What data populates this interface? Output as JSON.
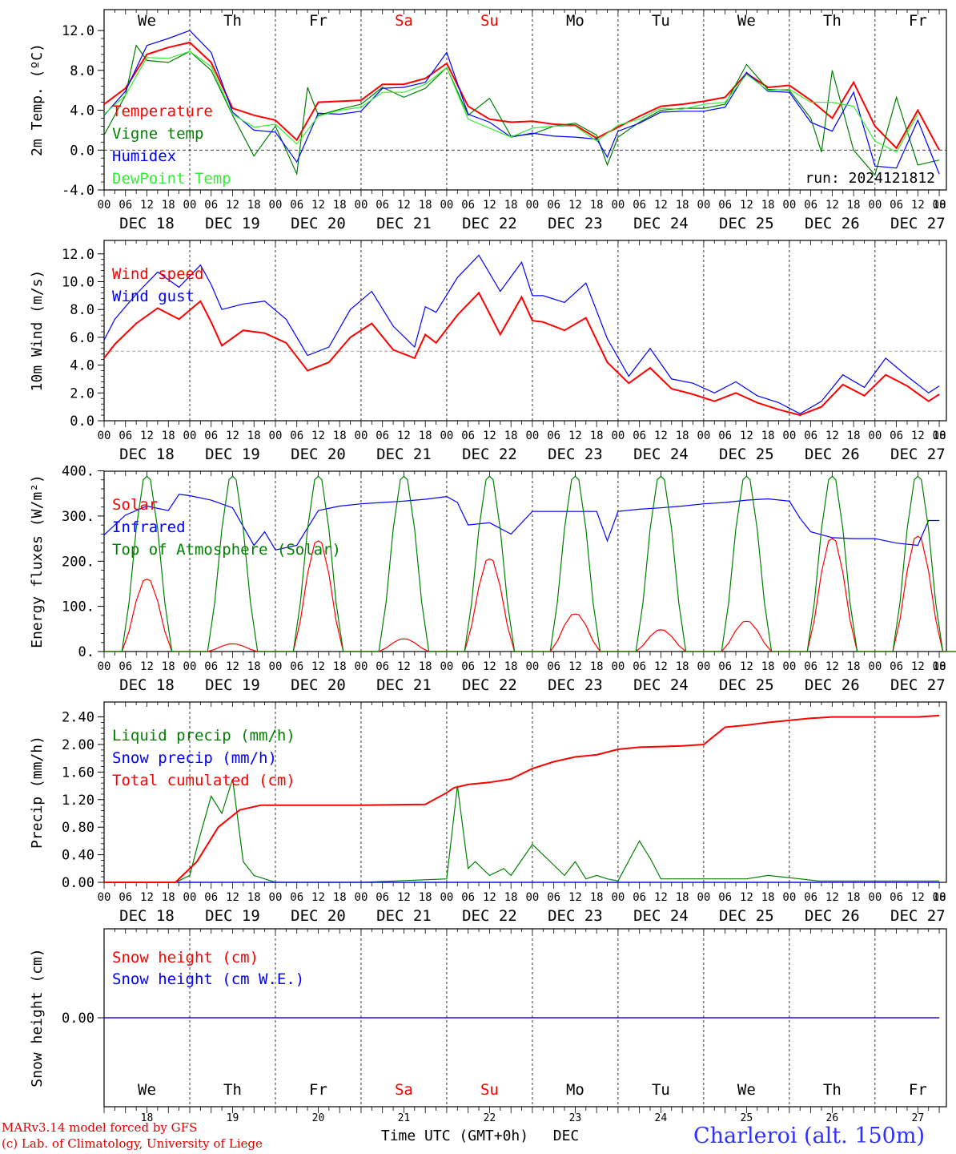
{
  "chart_data": {
    "type": "line",
    "run_label": "run: 2024121812",
    "days": [
      "DEC 18",
      "DEC 19",
      "DEC 20",
      "DEC 21",
      "DEC 22",
      "DEC 23",
      "DEC 24",
      "DEC 25",
      "DEC 26",
      "DEC 27"
    ],
    "weekdays": [
      "We",
      "Th",
      "Fr",
      "Sa",
      "Su",
      "Mo",
      "Tu",
      "We",
      "Th",
      "Fr"
    ],
    "weekend_color": "#ff0000",
    "hour_ticks": [
      "00",
      "06",
      "12",
      "18"
    ],
    "panels": [
      {
        "id": "temp",
        "ylabel": "2m Temp. (ºC)",
        "ylim": [
          -4,
          14
        ],
        "yticks": [
          "-4.0",
          "0.0",
          "4.0",
          "8.0",
          "12.0"
        ],
        "ytick_values": [
          -4,
          0,
          4,
          8,
          12
        ],
        "ref_line": 0,
        "series": [
          {
            "name": "Temperature",
            "color": "#ff0000",
            "x": [
              0,
              6,
              12,
              18,
              24,
              30,
              36,
              42,
              48,
              54,
              60,
              66,
              72,
              78,
              84,
              90,
              96,
              102,
              108,
              114,
              120,
              126,
              132,
              138,
              144,
              150,
              156,
              162,
              168,
              174,
              180,
              186,
              192,
              198,
              204,
              210,
              216,
              222,
              228,
              234
            ],
            "y": [
              4.6,
              6.2,
              9.6,
              10.3,
              10.8,
              8.8,
              4.2,
              3.5,
              3.0,
              1.0,
              4.8,
              4.9,
              5.0,
              6.6,
              6.6,
              7.2,
              8.7,
              4.4,
              3.1,
              2.8,
              2.9,
              2.6,
              2.5,
              1.2,
              2.3,
              3.4,
              4.4,
              4.6,
              4.9,
              5.3,
              7.7,
              6.3,
              6.5,
              5.0,
              3.2,
              6.8,
              2.4,
              0.2,
              4.0,
              0.0
            ]
          },
          {
            "name": "Vigne temp",
            "color": "#008000",
            "x": [
              0,
              6,
              9,
              12,
              18,
              24,
              30,
              36,
              42,
              48,
              54,
              57,
              60,
              66,
              72,
              78,
              84,
              90,
              96,
              102,
              108,
              114,
              120,
              126,
              132,
              138,
              141,
              144,
              150,
              156,
              162,
              168,
              174,
              180,
              186,
              192,
              198,
              201,
              204,
              210,
              216,
              222,
              228,
              234
            ],
            "y": [
              1.5,
              5.5,
              10.5,
              9.0,
              8.8,
              9.9,
              8.0,
              3.5,
              -0.6,
              2.4,
              -2.4,
              6.3,
              3.5,
              4.1,
              4.6,
              6.3,
              5.3,
              6.2,
              8.3,
              3.5,
              5.2,
              1.4,
              1.6,
              2.4,
              2.7,
              1.5,
              -1.5,
              1.3,
              2.8,
              4.0,
              4.2,
              4.2,
              4.6,
              8.6,
              6.1,
              6.0,
              3.2,
              -0.2,
              8.0,
              0.0,
              -2.5,
              5.3,
              -1.5,
              -1.0
            ]
          },
          {
            "name": "Humidex",
            "color": "#0000ff",
            "x": [
              0,
              6,
              12,
              18,
              24,
              30,
              36,
              42,
              48,
              54,
              60,
              66,
              72,
              78,
              84,
              90,
              96,
              102,
              108,
              114,
              120,
              126,
              132,
              138,
              141,
              144,
              150,
              156,
              162,
              168,
              174,
              180,
              186,
              192,
              198,
              204,
              210,
              216,
              222,
              228,
              234
            ],
            "y": [
              3.5,
              5.9,
              10.5,
              11.2,
              12.0,
              9.8,
              3.8,
              2.0,
              1.8,
              -1.2,
              3.7,
              3.6,
              3.9,
              6.2,
              6.3,
              6.8,
              9.8,
              3.6,
              2.8,
              1.3,
              1.7,
              1.4,
              1.3,
              1.1,
              -0.7,
              1.9,
              2.7,
              3.8,
              3.9,
              3.9,
              4.3,
              7.8,
              5.9,
              5.8,
              2.8,
              1.9,
              5.8,
              -1.6,
              -1.8,
              3.0,
              -2.4
            ]
          },
          {
            "name": "DewPoint Temp",
            "color": "#33ee33",
            "x": [
              0,
              6,
              12,
              18,
              24,
              30,
              36,
              42,
              48,
              54,
              60,
              66,
              72,
              78,
              84,
              90,
              96,
              102,
              108,
              114,
              120,
              126,
              132,
              138,
              144,
              150,
              156,
              162,
              168,
              174,
              180,
              186,
              192,
              198,
              204,
              210,
              216,
              222,
              228
            ],
            "y": [
              3.6,
              5.5,
              9.3,
              9.2,
              9.9,
              8.4,
              3.6,
              2.3,
              2.6,
              0.6,
              3.4,
              4.0,
              4.3,
              5.8,
              5.8,
              6.6,
              8.3,
              3.1,
              2.2,
              1.3,
              2.2,
              2.4,
              2.4,
              0.9,
              2.5,
              3.1,
              4.2,
              4.1,
              4.6,
              4.8,
              7.6,
              6.0,
              6.1,
              4.8,
              4.8,
              4.4,
              0.9,
              -0.2,
              3.6
            ]
          }
        ]
      },
      {
        "id": "wind",
        "ylabel": "10m Wind (m/s)",
        "ylim": [
          0,
          13
        ],
        "yticks": [
          "0.0",
          "2.0",
          "4.0",
          "6.0",
          "8.0",
          "10.0",
          "12.0"
        ],
        "ytick_values": [
          0,
          2,
          4,
          6,
          8,
          10,
          12
        ],
        "ref_line": 5,
        "series": [
          {
            "name": "Wind speed",
            "color": "#ff0000",
            "x": [
              0,
              3,
              9,
              15,
              21,
              27,
              30,
              33,
              39,
              45,
              51,
              57,
              63,
              69,
              75,
              81,
              87,
              90,
              93,
              99,
              105,
              111,
              117,
              120,
              123,
              129,
              135,
              141,
              147,
              153,
              159,
              165,
              171,
              177,
              183,
              189,
              195,
              201,
              207,
              213,
              219,
              225,
              231,
              234
            ],
            "y": [
              4.5,
              5.5,
              7.0,
              8.1,
              7.3,
              8.6,
              7.1,
              5.4,
              6.5,
              6.3,
              5.6,
              3.6,
              4.2,
              6.0,
              7.0,
              5.1,
              4.5,
              6.2,
              5.6,
              7.6,
              9.2,
              6.2,
              8.9,
              7.2,
              7.1,
              6.5,
              7.4,
              4.2,
              2.7,
              3.8,
              2.3,
              1.9,
              1.4,
              2.0,
              1.3,
              0.8,
              0.4,
              1.0,
              2.6,
              1.8,
              3.3,
              2.5,
              1.4,
              1.9
            ]
          },
          {
            "name": "Wind gust",
            "color": "#0000ff",
            "x": [
              0,
              3,
              9,
              15,
              21,
              27,
              30,
              33,
              39,
              45,
              51,
              57,
              63,
              69,
              75,
              81,
              87,
              90,
              93,
              99,
              105,
              111,
              117,
              120,
              123,
              129,
              135,
              141,
              147,
              153,
              159,
              165,
              171,
              177,
              183,
              189,
              195,
              201,
              207,
              213,
              219,
              225,
              231,
              234
            ],
            "y": [
              5.8,
              7.3,
              9.1,
              10.7,
              9.6,
              11.2,
              9.8,
              8.0,
              8.4,
              8.6,
              7.3,
              4.7,
              5.3,
              8.0,
              9.3,
              6.8,
              5.3,
              8.2,
              7.8,
              10.3,
              11.9,
              9.3,
              11.4,
              9.0,
              9.0,
              8.5,
              9.9,
              5.9,
              3.2,
              5.2,
              3.0,
              2.7,
              2.0,
              2.8,
              1.8,
              1.3,
              0.5,
              1.4,
              3.3,
              2.4,
              4.5,
              3.2,
              2.0,
              2.5
            ]
          }
        ]
      },
      {
        "id": "energy",
        "ylabel": "Energy fluxes (W/m²)",
        "ylim": [
          0,
          400
        ],
        "yticks": [
          "0.",
          "100.",
          "200.",
          "300.",
          "400."
        ],
        "ytick_values": [
          0,
          100,
          200,
          300,
          400
        ],
        "series": [
          {
            "name": "Solar",
            "color": "#ff0000",
            "diurnal_peaks": [
              160,
              17,
              245,
              28,
              205,
              83,
              48,
              67,
              250,
              255
            ]
          },
          {
            "name": "Infrared",
            "color": "#0000ff",
            "x": [
              0,
              6,
              12,
              18,
              21,
              24,
              30,
              36,
              42,
              45,
              48,
              54,
              60,
              66,
              72,
              78,
              84,
              90,
              96,
              99,
              102,
              108,
              114,
              120,
              126,
              132,
              138,
              141,
              144,
              150,
              156,
              162,
              168,
              174,
              180,
              186,
              192,
              195,
              198,
              204,
              210,
              216,
              222,
              228,
              231,
              234
            ],
            "y": [
              258,
              302,
              322,
              312,
              348,
              345,
              335,
              318,
              235,
              265,
              225,
              235,
              312,
              322,
              327,
              330,
              333,
              337,
              343,
              330,
              280,
              285,
              260,
              310,
              310,
              310,
              310,
              245,
              310,
              315,
              318,
              322,
              327,
              330,
              335,
              338,
              333,
              295,
              265,
              252,
              250,
              250,
              240,
              235,
              290,
              290
            ]
          },
          {
            "name": "Top of Atmosphere (Solar)",
            "color": "#008000",
            "diurnal_peaks": [
              388,
              388,
              388,
              388,
              388,
              388,
              388,
              388,
              388,
              388
            ]
          }
        ]
      },
      {
        "id": "precip",
        "ylabel": "Precip (mm/h)",
        "ylim": [
          0,
          2.6
        ],
        "yticks": [
          "0.00",
          "0.40",
          "0.80",
          "1.20",
          "1.60",
          "2.00",
          "2.40"
        ],
        "ytick_values": [
          0,
          0.4,
          0.8,
          1.2,
          1.6,
          2.0,
          2.4
        ],
        "series": [
          {
            "name": "Liquid precip (mm/h)",
            "color": "#008000",
            "x": [
              0,
              20,
              24,
              27,
              30,
              33,
              36,
              39,
              42,
              45,
              48,
              60,
              72,
              96,
              99,
              102,
              104,
              106,
              108,
              112,
              114,
              120,
              126,
              129,
              132,
              135,
              138,
              141,
              144,
              150,
              153,
              156,
              162,
              168,
              174,
              180,
              186,
              195,
              200,
              210,
              234
            ],
            "y": [
              0,
              0,
              0.1,
              0.7,
              1.25,
              1.0,
              1.5,
              0.3,
              0.1,
              0.05,
              0,
              0,
              0,
              0.05,
              1.4,
              0.2,
              0.3,
              0.2,
              0.1,
              0.2,
              0.1,
              0.55,
              0.25,
              0.1,
              0.3,
              0.05,
              0.1,
              0.05,
              0.02,
              0.6,
              0.35,
              0.05,
              0.05,
              0.05,
              0.05,
              0.05,
              0.1,
              0.05,
              0.02,
              0.02,
              0.02
            ]
          },
          {
            "name": "Snow precip (mm/h)",
            "color": "#0000ff",
            "x": [
              0,
              234
            ],
            "y": [
              0,
              0
            ]
          },
          {
            "name": "Total cumulated (cm)",
            "color": "#ff0000",
            "x": [
              0,
              20,
              26,
              32,
              38,
              44,
              48,
              60,
              72,
              90,
              96,
              98,
              102,
              108,
              114,
              120,
              126,
              132,
              138,
              144,
              150,
              156,
              162,
              168,
              174,
              180,
              186,
              192,
              198,
              204,
              210,
              216,
              222,
              228,
              234
            ],
            "y": [
              0,
              0,
              0.3,
              0.8,
              1.05,
              1.12,
              1.12,
              1.12,
              1.12,
              1.13,
              1.3,
              1.37,
              1.42,
              1.45,
              1.5,
              1.65,
              1.75,
              1.82,
              1.85,
              1.93,
              1.96,
              1.97,
              1.98,
              2.0,
              2.25,
              2.28,
              2.32,
              2.35,
              2.38,
              2.4,
              2.4,
              2.4,
              2.4,
              2.4,
              2.42
            ]
          }
        ]
      },
      {
        "id": "snow",
        "ylabel": "Snow height (cm)",
        "ytick_values": [
          0
        ],
        "yticks": [
          "0.00"
        ],
        "series": [
          {
            "name": "Snow height (cm)",
            "color": "#ff0000",
            "x": [
              0,
              234
            ],
            "y": [
              0,
              0
            ]
          },
          {
            "name": "Snow height (cm W.E.)",
            "color": "#0000ff",
            "x": [
              0,
              234
            ],
            "y": [
              0,
              0
            ]
          }
        ]
      }
    ],
    "bottom_axis": {
      "day_numbers": [
        "18",
        "19",
        "20",
        "21",
        "22",
        "23",
        "24",
        "25",
        "26",
        "27"
      ],
      "xlabel": "Time UTC (GMT+0h)",
      "month": "DEC"
    }
  },
  "footer": {
    "credit_line1": "MARv3.14 model forced by GFS",
    "credit_line2": "(c) Lab. of Climatology, University of Liege",
    "station": "Charleroi (alt. 150m)"
  }
}
